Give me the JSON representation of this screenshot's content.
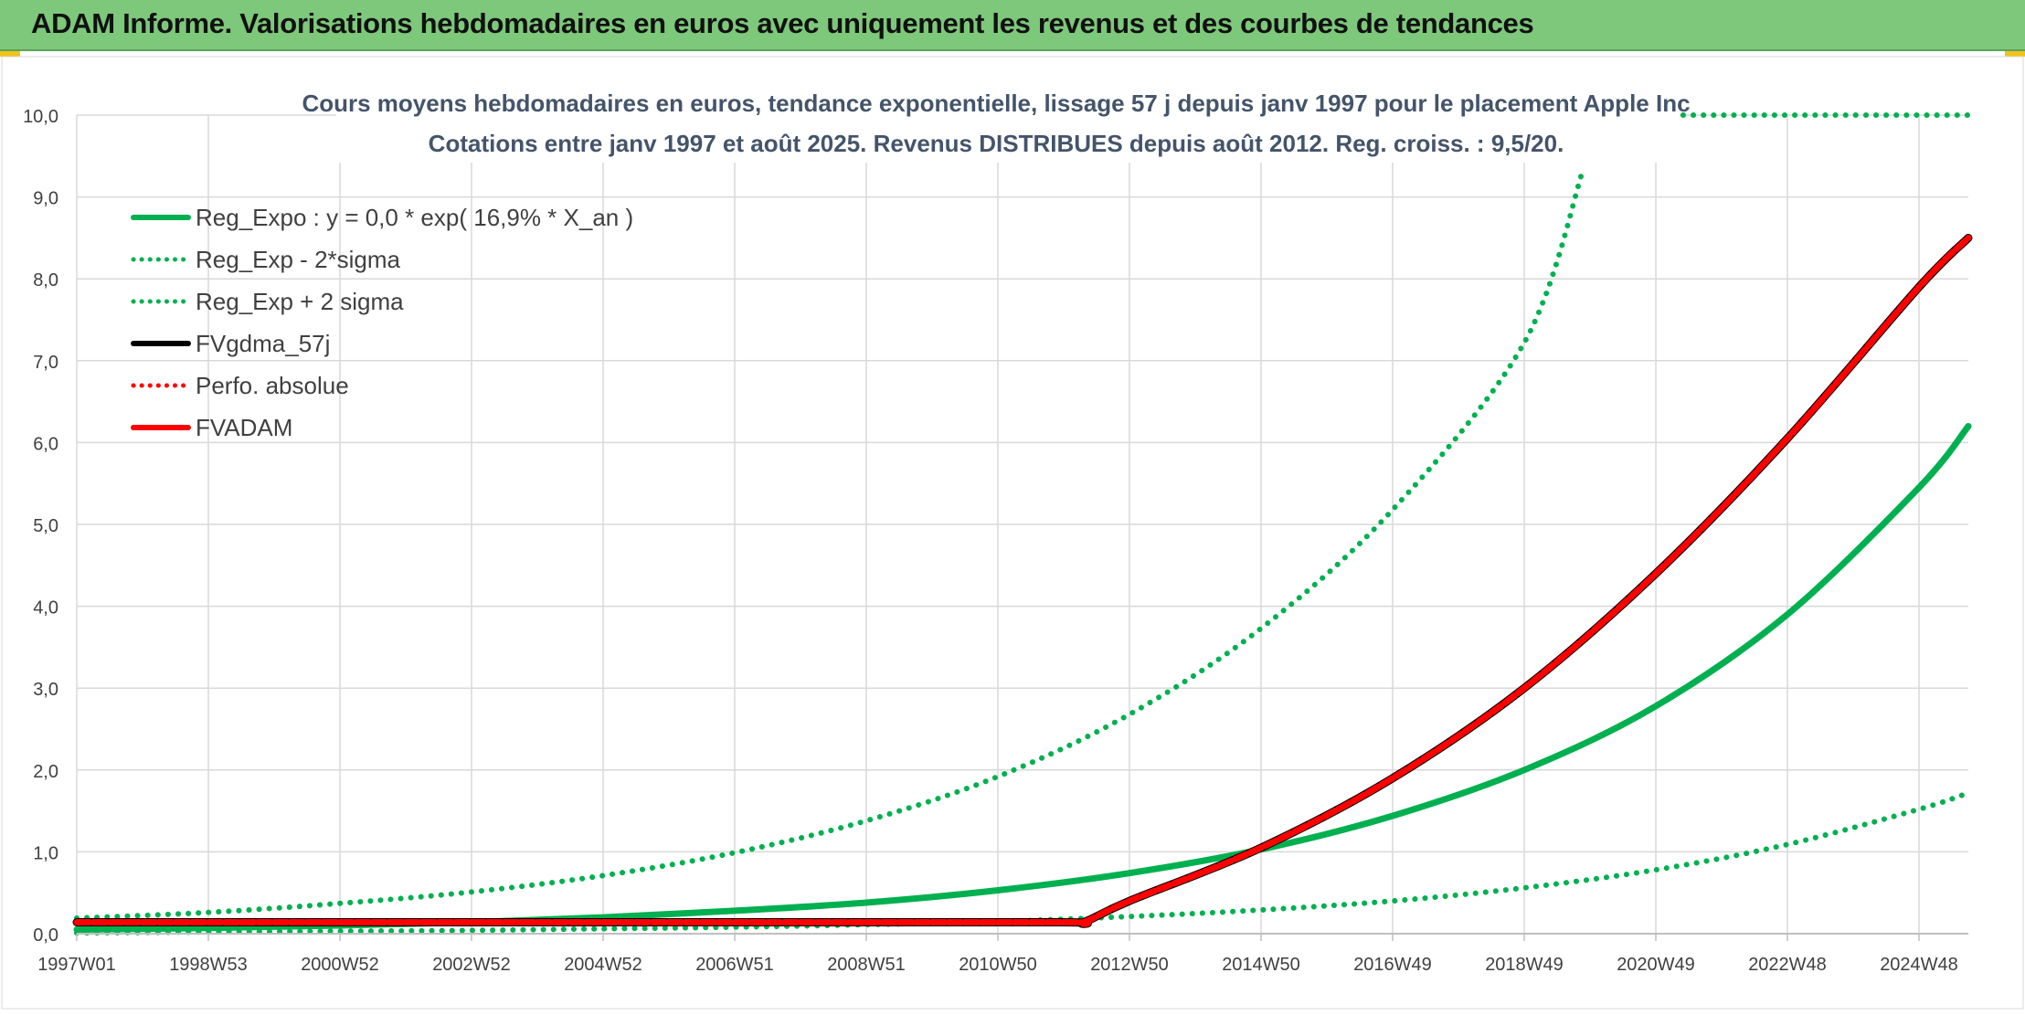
{
  "header": {
    "title": "ADAM Informe. Valorisations hebdomadaires en euros avec uniquement les revenus et des courbes de tendances"
  },
  "chart_data": {
    "type": "line",
    "title": "Cours moyens hebdomadaires en euros, tendance exponentielle, lissage 57 j depuis janv 1997 pour le placement Apple Inc",
    "subtitle": "Cotations entre janv 1997 et août 2025. Revenus DISTRIBUES depuis août 2012. Reg. croiss. : 9,5/20.",
    "xlabel": "",
    "ylabel": "",
    "x_ticks": [
      "1997W01",
      "1998W53",
      "2000W52",
      "2002W52",
      "2004W52",
      "2006W51",
      "2008W51",
      "2010W50",
      "2012W50",
      "2014W50",
      "2016W49",
      "2018W49",
      "2020W49",
      "2022W48",
      "2024W48"
    ],
    "x_tick_years": [
      1997.0,
      1999.0,
      2001.0,
      2003.0,
      2005.0,
      2007.0,
      2009.0,
      2011.0,
      2013.0,
      2015.0,
      2017.0,
      2019.0,
      2021.0,
      2023.0,
      2025.0
    ],
    "xlim": [
      1997.0,
      2025.75
    ],
    "y_ticks": [
      "0,0",
      "1,0",
      "2,0",
      "3,0",
      "4,0",
      "5,0",
      "6,0",
      "7,0",
      "8,0",
      "9,0",
      "10,0"
    ],
    "ylim": [
      0,
      10
    ],
    "grid": true,
    "legend_position": "top-left",
    "series": [
      {
        "name": "Reg_Expo : y = 0,0 * exp( 16,9% *  X_an )",
        "color": "#00b050",
        "style": "solid",
        "x": [
          1997,
          1999,
          2001,
          2003,
          2005,
          2007,
          2009,
          2011,
          2013,
          2015,
          2017,
          2019,
          2021,
          2023,
          2025,
          2025.75
        ],
        "y": [
          0.05,
          0.07,
          0.1,
          0.14,
          0.2,
          0.28,
          0.38,
          0.53,
          0.74,
          1.03,
          1.44,
          2.0,
          2.78,
          3.9,
          5.45,
          6.2
        ]
      },
      {
        "name": "Reg_Exp - 2*sigma",
        "color": "#00b050",
        "style": "dotted",
        "x": [
          1997,
          1999,
          2001,
          2003,
          2005,
          2007,
          2009,
          2011,
          2013,
          2015,
          2017,
          2019,
          2021,
          2023,
          2025,
          2025.75
        ],
        "y": [
          0.01,
          0.02,
          0.03,
          0.04,
          0.06,
          0.08,
          0.11,
          0.15,
          0.21,
          0.29,
          0.4,
          0.56,
          0.78,
          1.09,
          1.52,
          1.72
        ]
      },
      {
        "name": "Reg_Exp + 2 sigma",
        "color": "#00b050",
        "style": "dotted",
        "x": [
          1997,
          1999,
          2001,
          2003,
          2005,
          2007,
          2009,
          2011,
          2013,
          2015,
          2017,
          2019,
          2019.9
        ],
        "y": [
          0.19,
          0.26,
          0.37,
          0.51,
          0.71,
          0.99,
          1.38,
          1.92,
          2.68,
          3.73,
          5.18,
          7.22,
          9.35
        ]
      },
      {
        "name": "FVgdma_57j",
        "color": "#000000",
        "style": "solid",
        "x": [
          1997,
          2000,
          2004,
          2008,
          2012,
          2012.3,
          2013,
          2015,
          2017,
          2019,
          2021,
          2023,
          2025,
          2025.75
        ],
        "y": [
          0.14,
          0.14,
          0.14,
          0.14,
          0.14,
          0.14,
          0.4,
          1.05,
          1.9,
          3.0,
          4.4,
          6.05,
          7.9,
          8.5
        ]
      },
      {
        "name": "Perfo. absolue",
        "color": "#ff0000",
        "style": "dotted",
        "x": [],
        "y": []
      },
      {
        "name": "FVADAM",
        "color": "#ff0000",
        "style": "solid",
        "x": [
          1997,
          2000,
          2004,
          2008,
          2012,
          2012.3,
          2013,
          2015,
          2017,
          2019,
          2021,
          2023,
          2025,
          2025.75
        ],
        "y": [
          0.14,
          0.14,
          0.14,
          0.14,
          0.14,
          0.14,
          0.4,
          1.05,
          1.9,
          3.0,
          4.4,
          6.05,
          7.9,
          8.5
        ]
      },
      {
        "name": "",
        "color": "#00b050",
        "style": "dotted",
        "x": [
          2020.8,
          2025.75
        ],
        "y": [
          10.0,
          10.0
        ]
      }
    ]
  }
}
